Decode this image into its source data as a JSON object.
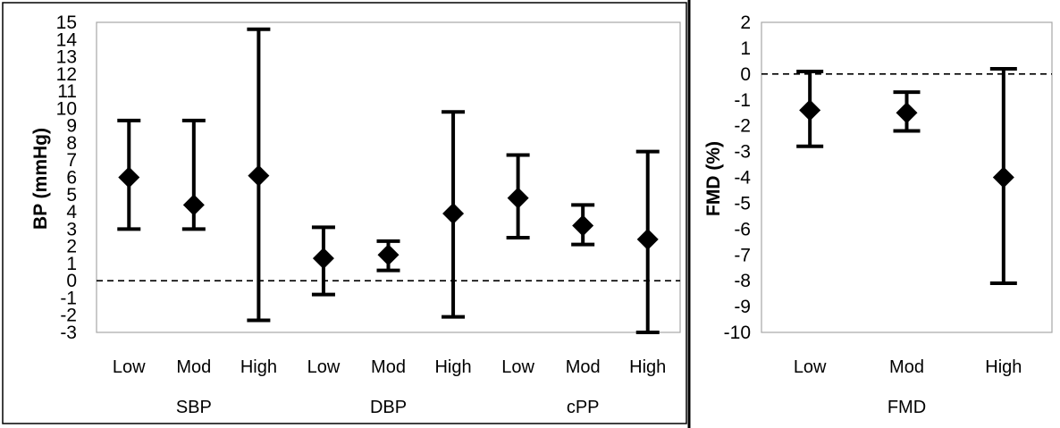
{
  "chart_data": [
    {
      "type": "scatter",
      "ylabel": "BP (mmHg)",
      "ylim": [
        -3,
        15
      ],
      "yticks": [
        15,
        14,
        13,
        12,
        11,
        10,
        9,
        8,
        7,
        6,
        5,
        4,
        3,
        2,
        1,
        0,
        -1,
        -2,
        -3
      ],
      "reference_line": 0,
      "groups": [
        {
          "label": "SBP",
          "categories": [
            "Low",
            "Mod",
            "High"
          ]
        },
        {
          "label": "DBP",
          "categories": [
            "Low",
            "Mod",
            "High"
          ]
        },
        {
          "label": "cPP",
          "categories": [
            "Low",
            "Mod",
            "High"
          ]
        }
      ],
      "points": [
        {
          "group": "SBP",
          "category": "Low",
          "value": 6.0,
          "lower": 3.0,
          "upper": 9.3
        },
        {
          "group": "SBP",
          "category": "Mod",
          "value": 4.4,
          "lower": 3.0,
          "upper": 9.3
        },
        {
          "group": "SBP",
          "category": "High",
          "value": 6.1,
          "lower": -2.3,
          "upper": 14.6
        },
        {
          "group": "DBP",
          "category": "Low",
          "value": 1.3,
          "lower": -0.8,
          "upper": 3.1
        },
        {
          "group": "DBP",
          "category": "Mod",
          "value": 1.5,
          "lower": 0.6,
          "upper": 2.3
        },
        {
          "group": "DBP",
          "category": "High",
          "value": 3.9,
          "lower": -2.1,
          "upper": 9.8
        },
        {
          "group": "cPP",
          "category": "Low",
          "value": 4.8,
          "lower": 2.5,
          "upper": 7.3
        },
        {
          "group": "cPP",
          "category": "Mod",
          "value": 3.2,
          "lower": 2.1,
          "upper": 4.4
        },
        {
          "group": "cPP",
          "category": "High",
          "value": 2.4,
          "lower": -3.0,
          "upper": 7.5
        }
      ]
    },
    {
      "type": "scatter",
      "ylabel": "FMD (%)",
      "ylim": [
        -10,
        2
      ],
      "yticks": [
        2,
        1,
        0,
        -1,
        -2,
        -3,
        -4,
        -5,
        -6,
        -7,
        -8,
        -9,
        -10
      ],
      "reference_line": 0,
      "groups": [
        {
          "label": "FMD",
          "categories": [
            "Low",
            "Mod",
            "High"
          ]
        }
      ],
      "points": [
        {
          "group": "FMD",
          "category": "Low",
          "value": -1.4,
          "lower": -2.8,
          "upper": 0.1
        },
        {
          "group": "FMD",
          "category": "Mod",
          "value": -1.5,
          "lower": -2.2,
          "upper": -0.7
        },
        {
          "group": "FMD",
          "category": "High",
          "value": -4.0,
          "lower": -8.1,
          "upper": 0.2
        }
      ]
    }
  ]
}
